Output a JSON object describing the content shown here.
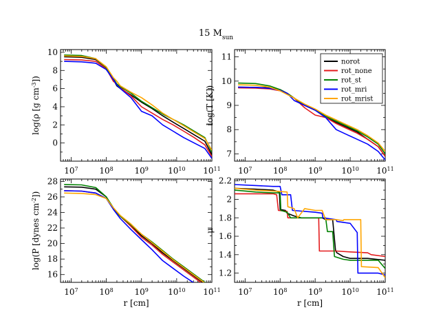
{
  "figure_title": {
    "base": "15 M",
    "sub": "sun"
  },
  "legend": {
    "entries": [
      {
        "name": "norot",
        "color": "#000000"
      },
      {
        "name": "rot_none",
        "color": "#e31a1c"
      },
      {
        "name": "rot_st",
        "color": "#008000"
      },
      {
        "name": "rot_mri",
        "color": "#0000ff"
      },
      {
        "name": "rot_mrist",
        "color": "#ffa500"
      }
    ]
  },
  "chart_data": [
    {
      "type": "line",
      "id": "density",
      "title": "",
      "xlabel": "",
      "ylabel_parts": {
        "pre": "log(ρ [g cm",
        "sup": "-3",
        "post": "])"
      },
      "xscale": "log",
      "xlim": [
        5000000.0,
        100000000000.0
      ],
      "ylim": [
        -2,
        10.3
      ],
      "xticks": [
        10000000.0,
        100000000.0,
        1000000000.0,
        10000000000.0,
        100000000000.0
      ],
      "xtick_labels": [
        {
          "b": "10",
          "e": "7"
        },
        {
          "b": "10",
          "e": "8"
        },
        {
          "b": "10",
          "e": "9"
        },
        {
          "b": "10",
          "e": "10"
        },
        {
          "b": "10",
          "e": "11"
        }
      ],
      "yticks": [
        0,
        2,
        4,
        6,
        8,
        10
      ],
      "ytick_labels": [
        "0",
        "2",
        "4",
        "6",
        "8",
        "10"
      ],
      "series": [
        {
          "name": "norot",
          "x": [
            6.8,
            7.3,
            7.7,
            8.0,
            8.2,
            8.3,
            8.4,
            8.7,
            9.0,
            9.3,
            9.6,
            9.9,
            10.2,
            10.5,
            10.8,
            11.0
          ],
          "y": [
            9.5,
            9.45,
            9.2,
            8.3,
            7.0,
            6.3,
            6.0,
            5.3,
            4.5,
            3.8,
            3.0,
            2.3,
            1.6,
            0.9,
            0.2,
            -1.3
          ]
        },
        {
          "name": "rot_none",
          "x": [
            6.8,
            7.3,
            7.7,
            8.0,
            8.2,
            8.3,
            8.4,
            8.7,
            9.0,
            9.3,
            9.6,
            9.9,
            10.2,
            10.5,
            10.8,
            11.0
          ],
          "y": [
            9.2,
            9.15,
            9.0,
            8.2,
            6.8,
            6.5,
            6.1,
            5.2,
            4.0,
            3.3,
            2.6,
            2.0,
            1.3,
            0.6,
            -0.2,
            -1.5
          ]
        },
        {
          "name": "rot_st",
          "x": [
            6.8,
            7.3,
            7.7,
            8.0,
            8.2,
            8.3,
            8.4,
            8.7,
            9.0,
            9.3,
            9.6,
            9.9,
            10.2,
            10.5,
            10.8,
            11.0
          ],
          "y": [
            9.7,
            9.65,
            9.3,
            8.3,
            7.1,
            6.5,
            6.2,
            5.5,
            4.6,
            3.9,
            3.2,
            2.6,
            2.0,
            1.3,
            0.6,
            -1.0
          ]
        },
        {
          "name": "rot_mri",
          "x": [
            6.8,
            7.3,
            7.7,
            8.0,
            8.2,
            8.3,
            8.4,
            8.7,
            9.0,
            9.3,
            9.6,
            9.9,
            10.2,
            10.5,
            10.8,
            11.0
          ],
          "y": [
            9.0,
            8.95,
            8.8,
            8.1,
            7.0,
            6.4,
            6.0,
            5.0,
            3.5,
            3.0,
            2.0,
            1.3,
            0.6,
            0.0,
            -0.6,
            -1.7
          ]
        },
        {
          "name": "rot_mrist",
          "x": [
            6.8,
            7.3,
            7.7,
            8.0,
            8.2,
            8.3,
            8.4,
            8.7,
            9.0,
            9.3,
            9.6,
            9.9,
            10.2,
            10.5,
            10.8,
            11.0
          ],
          "y": [
            9.6,
            9.55,
            9.3,
            8.4,
            7.2,
            6.8,
            6.3,
            5.6,
            5.0,
            4.2,
            3.3,
            2.6,
            1.9,
            1.2,
            0.5,
            -0.8
          ]
        }
      ]
    },
    {
      "type": "line",
      "id": "temperature",
      "title": "",
      "xlabel": "",
      "ylabel_parts": {
        "pre": "log(T [K])",
        "sup": "",
        "post": ""
      },
      "xscale": "log",
      "xlim": [
        5000000.0,
        100000000000.0
      ],
      "ylim": [
        6.7,
        11.3
      ],
      "xticks": [
        10000000.0,
        100000000.0,
        1000000000.0,
        10000000000.0,
        100000000000.0
      ],
      "xtick_labels": [
        {
          "b": "10",
          "e": "7"
        },
        {
          "b": "10",
          "e": "8"
        },
        {
          "b": "10",
          "e": "9"
        },
        {
          "b": "10",
          "e": "10"
        },
        {
          "b": "10",
          "e": "11"
        }
      ],
      "yticks": [
        7,
        8,
        9,
        10,
        11
      ],
      "ytick_labels": [
        "7",
        "8",
        "9",
        "10",
        "11"
      ],
      "series": [
        {
          "name": "norot",
          "x": [
            6.8,
            7.3,
            7.7,
            8.0,
            8.2,
            8.4,
            8.7,
            9.0,
            9.3,
            9.6,
            9.9,
            10.2,
            10.5,
            10.8,
            11.0
          ],
          "y": [
            9.75,
            9.74,
            9.72,
            9.65,
            9.5,
            9.3,
            9.0,
            8.8,
            8.5,
            8.3,
            8.1,
            7.9,
            7.6,
            7.3,
            6.9
          ]
        },
        {
          "name": "rot_none",
          "x": [
            6.8,
            7.3,
            7.7,
            8.0,
            8.2,
            8.4,
            8.7,
            9.0,
            9.3,
            9.6,
            9.9,
            10.2,
            10.5,
            10.8,
            11.0
          ],
          "y": [
            9.72,
            9.71,
            9.68,
            9.6,
            9.5,
            9.3,
            8.9,
            8.6,
            8.5,
            8.25,
            8.05,
            7.85,
            7.6,
            7.3,
            6.9
          ]
        },
        {
          "name": "rot_st",
          "x": [
            6.8,
            7.3,
            7.7,
            8.0,
            8.2,
            8.4,
            8.7,
            9.0,
            9.3,
            9.6,
            9.9,
            10.2,
            10.5,
            10.8,
            11.0
          ],
          "y": [
            9.92,
            9.9,
            9.8,
            9.65,
            9.5,
            9.3,
            9.0,
            8.8,
            8.55,
            8.35,
            8.15,
            7.95,
            7.7,
            7.4,
            7.0
          ]
        },
        {
          "name": "rot_mri",
          "x": [
            6.8,
            7.3,
            7.7,
            8.0,
            8.2,
            8.4,
            8.7,
            9.0,
            9.3,
            9.6,
            9.9,
            10.2,
            10.5,
            10.8,
            11.0
          ],
          "y": [
            9.75,
            9.74,
            9.7,
            9.62,
            9.5,
            9.2,
            9.0,
            8.8,
            8.5,
            8.0,
            7.8,
            7.6,
            7.4,
            7.1,
            6.75
          ]
        },
        {
          "name": "rot_mrist",
          "x": [
            6.8,
            7.3,
            7.7,
            8.0,
            8.2,
            8.4,
            8.7,
            9.0,
            9.3,
            9.6,
            9.9,
            10.2,
            10.5,
            10.8,
            11.0
          ],
          "y": [
            9.85,
            9.83,
            9.75,
            9.6,
            9.45,
            9.3,
            9.05,
            8.85,
            8.6,
            8.4,
            8.2,
            8.0,
            7.75,
            7.45,
            7.1
          ]
        }
      ]
    },
    {
      "type": "line",
      "id": "pressure",
      "title": "",
      "xlabel": "r [cm]",
      "ylabel_parts": {
        "pre": "log(P [dynes cm",
        "sup": "-2",
        "post": "])"
      },
      "xscale": "log",
      "xlim": [
        5000000.0,
        100000000000.0
      ],
      "ylim": [
        15,
        28.3
      ],
      "xticks": [
        10000000.0,
        100000000.0,
        1000000000.0,
        10000000000.0,
        100000000000.0
      ],
      "xtick_labels": [
        {
          "b": "10",
          "e": "7"
        },
        {
          "b": "10",
          "e": "8"
        },
        {
          "b": "10",
          "e": "9"
        },
        {
          "b": "10",
          "e": "10"
        },
        {
          "b": "10",
          "e": "11"
        }
      ],
      "yticks": [
        16,
        18,
        20,
        22,
        24,
        26,
        28
      ],
      "ytick_labels": [
        "16",
        "18",
        "20",
        "22",
        "24",
        "26",
        "28"
      ],
      "series": [
        {
          "name": "norot",
          "x": [
            6.8,
            7.3,
            7.7,
            8.0,
            8.2,
            8.4,
            8.7,
            9.0,
            9.3,
            9.6,
            9.9,
            10.2,
            10.5,
            10.8,
            11.0
          ],
          "y": [
            27.3,
            27.25,
            27.0,
            26.0,
            24.5,
            23.5,
            22.3,
            21.0,
            20.0,
            18.8,
            17.8,
            16.8,
            15.8,
            14.8,
            14.0
          ]
        },
        {
          "name": "rot_none",
          "x": [
            6.8,
            7.3,
            7.7,
            8.0,
            8.2,
            8.4,
            8.7,
            9.0,
            9.3,
            9.6,
            9.9,
            10.2,
            10.5,
            10.8,
            11.0
          ],
          "y": [
            26.8,
            26.75,
            26.5,
            25.8,
            24.5,
            23.5,
            22.2,
            20.8,
            19.8,
            18.6,
            17.6,
            16.6,
            15.6,
            14.6,
            13.8
          ]
        },
        {
          "name": "rot_st",
          "x": [
            6.8,
            7.3,
            7.7,
            8.0,
            8.2,
            8.4,
            8.7,
            9.0,
            9.3,
            9.6,
            9.9,
            10.2,
            10.5,
            10.8,
            11.0
          ],
          "y": [
            27.6,
            27.55,
            27.2,
            26.0,
            24.6,
            23.5,
            22.4,
            21.2,
            20.2,
            19.1,
            18.0,
            17.0,
            16.0,
            15.0,
            14.2
          ]
        },
        {
          "name": "rot_mri",
          "x": [
            6.8,
            7.3,
            7.7,
            8.0,
            8.2,
            8.4,
            8.7,
            9.0,
            9.3,
            9.6,
            9.9,
            10.2,
            10.5,
            10.8,
            11.0
          ],
          "y": [
            26.8,
            26.75,
            26.5,
            25.8,
            24.4,
            23.2,
            21.8,
            20.5,
            19.2,
            17.8,
            16.8,
            15.8,
            14.9,
            14.2,
            13.8
          ]
        },
        {
          "name": "rot_mrist",
          "x": [
            6.8,
            7.3,
            7.7,
            8.0,
            8.2,
            8.4,
            8.7,
            9.0,
            9.3,
            9.6,
            9.9,
            10.2,
            10.5,
            10.8,
            11.0
          ],
          "y": [
            26.5,
            26.45,
            26.3,
            25.8,
            24.6,
            23.6,
            22.5,
            21.2,
            20.1,
            19.0,
            17.9,
            16.9,
            15.9,
            14.9,
            14.1
          ]
        }
      ]
    },
    {
      "type": "line",
      "id": "mu",
      "title": "",
      "xlabel": "r [cm]",
      "ylabel_parts": {
        "pre": "μ",
        "sup": "",
        "post": ""
      },
      "xscale": "log",
      "xlim": [
        5000000.0,
        100000000000.0
      ],
      "ylim": [
        1.1,
        2.22
      ],
      "xticks": [
        10000000.0,
        100000000.0,
        1000000000.0,
        10000000000.0,
        100000000000.0
      ],
      "xtick_labels": [
        {
          "b": "10",
          "e": "7"
        },
        {
          "b": "10",
          "e": "8"
        },
        {
          "b": "10",
          "e": "9"
        },
        {
          "b": "10",
          "e": "10"
        },
        {
          "b": "10",
          "e": "11"
        }
      ],
      "yticks": [
        1.2,
        1.4,
        1.6,
        1.8,
        2.0,
        2.2
      ],
      "ytick_labels": [
        "1.2",
        "1.4",
        "1.6",
        "1.8",
        "2",
        "2.2"
      ],
      "series": [
        {
          "name": "norot",
          "x": [
            6.7,
            7.3,
            7.8,
            7.98,
            8.0,
            8.15,
            8.2,
            8.4,
            8.6,
            9.0,
            9.2,
            9.3,
            9.5,
            9.58,
            9.62,
            9.8,
            10.0,
            10.5,
            11.0
          ],
          "y": [
            2.12,
            2.11,
            2.1,
            2.08,
            1.89,
            1.88,
            1.85,
            1.82,
            1.8,
            1.8,
            1.8,
            1.78,
            1.78,
            1.45,
            1.42,
            1.38,
            1.36,
            1.36,
            1.34
          ]
        },
        {
          "name": "rot_none",
          "x": [
            6.7,
            7.3,
            7.8,
            7.9,
            7.95,
            8.2,
            8.22,
            8.6,
            9.0,
            9.1,
            9.12,
            9.6,
            10.0,
            10.5,
            10.6,
            11.0
          ],
          "y": [
            2.06,
            2.06,
            2.06,
            2.05,
            1.88,
            1.87,
            1.8,
            1.8,
            1.8,
            1.8,
            1.44,
            1.44,
            1.43,
            1.42,
            1.4,
            1.38
          ]
        },
        {
          "name": "rot_st",
          "x": [
            6.7,
            7.3,
            7.8,
            8.0,
            8.02,
            8.2,
            8.3,
            8.6,
            9.0,
            9.3,
            9.35,
            9.5,
            9.55,
            9.8,
            10.0,
            10.8,
            11.0
          ],
          "y": [
            2.1,
            2.08,
            2.07,
            2.07,
            1.88,
            1.86,
            1.8,
            1.8,
            1.8,
            1.8,
            1.65,
            1.65,
            1.38,
            1.35,
            1.34,
            1.34,
            1.25
          ]
        },
        {
          "name": "rot_mri",
          "x": [
            6.7,
            7.3,
            7.8,
            8.0,
            8.05,
            8.3,
            8.35,
            9.0,
            9.2,
            9.22,
            9.6,
            9.62,
            10.0,
            10.2,
            10.22,
            10.8,
            11.0
          ],
          "y": [
            2.16,
            2.15,
            2.14,
            2.14,
            2.05,
            2.05,
            1.88,
            1.86,
            1.85,
            1.8,
            1.78,
            1.76,
            1.74,
            1.64,
            1.2,
            1.2,
            1.18
          ]
        },
        {
          "name": "rot_mrist",
          "x": [
            6.7,
            7.3,
            7.8,
            8.2,
            8.22,
            8.4,
            8.5,
            8.7,
            9.0,
            9.2,
            9.3,
            9.6,
            9.8,
            9.82,
            10.3,
            10.32,
            10.8,
            11.0
          ],
          "y": [
            2.12,
            2.1,
            2.09,
            2.08,
            1.92,
            1.9,
            1.8,
            1.9,
            1.88,
            1.88,
            1.78,
            1.78,
            1.77,
            1.78,
            1.78,
            1.27,
            1.26,
            1.15
          ]
        }
      ]
    }
  ]
}
